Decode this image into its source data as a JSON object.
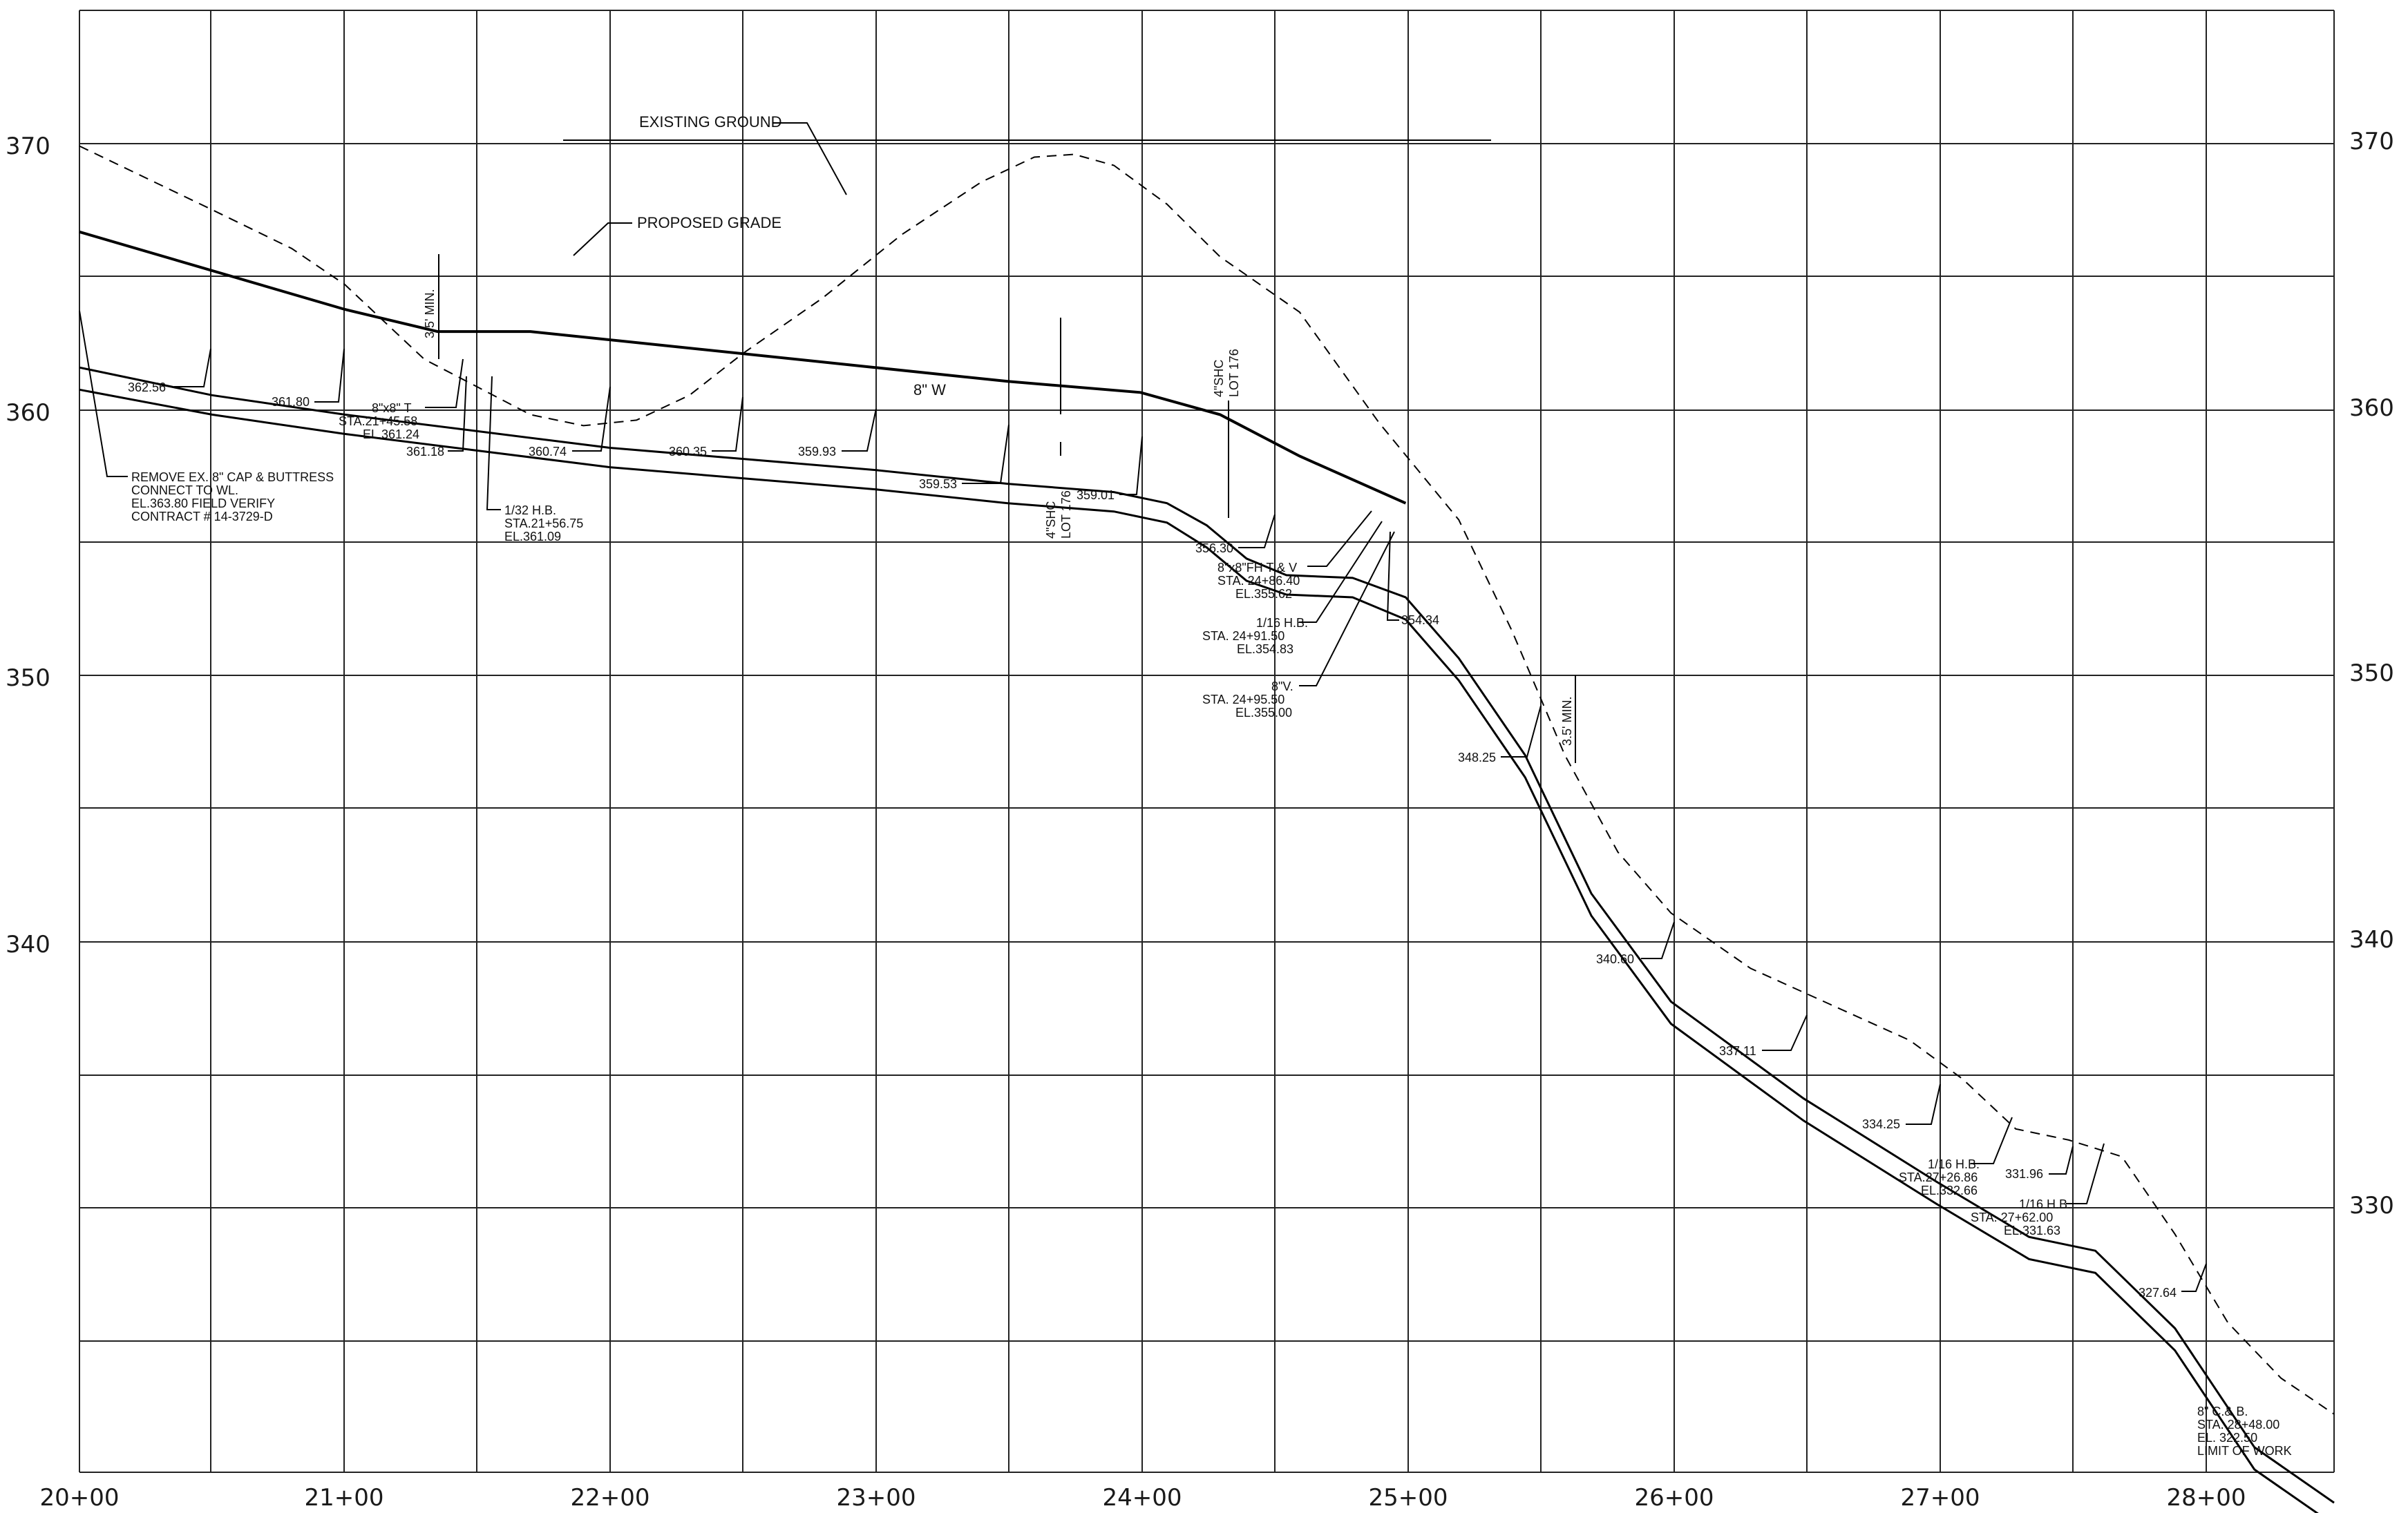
{
  "x_axis": {
    "stations": [
      "20+00",
      "21+00",
      "22+00",
      "23+00",
      "24+00",
      "25+00",
      "26+00",
      "27+00",
      "28+00"
    ],
    "min": 20,
    "max": 28.5
  },
  "y_axis": {
    "left_labels": [
      "370",
      "360",
      "350",
      "340",
      "330"
    ],
    "right_labels": [
      "370",
      "360",
      "350",
      "340",
      "330"
    ],
    "min": 324.6,
    "max": 377.4
  },
  "lines": {
    "existing_ground": [
      [
        20,
        372.5
      ],
      [
        20.5,
        370.2
      ],
      [
        20.8,
        368.8
      ],
      [
        21,
        367.5
      ],
      [
        21.3,
        364.8
      ],
      [
        21.5,
        363.8
      ],
      [
        21.7,
        362.8
      ],
      [
        21.9,
        362.4
      ],
      [
        22.1,
        362.6
      ],
      [
        22.3,
        363.5
      ],
      [
        22.5,
        365
      ],
      [
        22.8,
        367
      ],
      [
        23.1,
        369.3
      ],
      [
        23.4,
        371.2
      ],
      [
        23.6,
        372.1
      ],
      [
        23.75,
        372.2
      ],
      [
        23.9,
        371.8
      ],
      [
        24.1,
        370.4
      ],
      [
        24.3,
        368.5
      ],
      [
        24.6,
        366.5
      ],
      [
        24.9,
        362.5
      ],
      [
        25.2,
        359
      ],
      [
        25.4,
        355
      ],
      [
        25.6,
        350.5
      ],
      [
        25.8,
        347
      ],
      [
        26,
        344.8
      ],
      [
        26.3,
        342.8
      ],
      [
        26.6,
        341.5
      ],
      [
        26.9,
        340.2
      ],
      [
        27.1,
        338.8
      ],
      [
        27.3,
        337
      ],
      [
        27.5,
        336.6
      ],
      [
        27.7,
        336
      ],
      [
        27.9,
        333.2
      ],
      [
        28.1,
        330
      ],
      [
        28.3,
        328
      ],
      [
        28.5,
        326.7
      ]
    ],
    "proposed_grade": [
      [
        20,
        369.4
      ],
      [
        21,
        366.6
      ],
      [
        21.35,
        365.8
      ],
      [
        21.7,
        365.8
      ],
      [
        22.2,
        365.3
      ],
      [
        23,
        364.5
      ],
      [
        23.5,
        364
      ],
      [
        24,
        363.6
      ],
      [
        24.3,
        362.8
      ],
      [
        24.6,
        361.3
      ],
      [
        25,
        359.6
      ]
    ],
    "pipe_top": [
      [
        20,
        364.5
      ],
      [
        20.5,
        363.5
      ],
      [
        21,
        362.8
      ],
      [
        21.5,
        362.2
      ],
      [
        22,
        361.6
      ],
      [
        22.5,
        361.2
      ],
      [
        23,
        360.8
      ],
      [
        23.5,
        360.3
      ],
      [
        23.9,
        360
      ],
      [
        24.1,
        359.6
      ],
      [
        24.25,
        358.8
      ],
      [
        24.4,
        357.6
      ],
      [
        24.55,
        357
      ],
      [
        24.8,
        356.9
      ],
      [
        25,
        356.2
      ],
      [
        25.2,
        354
      ],
      [
        25.45,
        350.5
      ],
      [
        25.7,
        345.5
      ],
      [
        26,
        341.6
      ],
      [
        26.5,
        338.1
      ],
      [
        27,
        335.1
      ],
      [
        27.35,
        333.1
      ],
      [
        27.6,
        332.6
      ],
      [
        27.9,
        329.8
      ],
      [
        28.2,
        325.5
      ],
      [
        28.5,
        323.5
      ]
    ],
    "pipe_bottom": [
      [
        20,
        363.7
      ],
      [
        20.5,
        362.8
      ],
      [
        21,
        362.1
      ],
      [
        21.5,
        361.5
      ],
      [
        22,
        360.9
      ],
      [
        22.5,
        360.5
      ],
      [
        23,
        360.1
      ],
      [
        23.5,
        359.6
      ],
      [
        23.9,
        359.3
      ],
      [
        24.1,
        358.9
      ],
      [
        24.25,
        358
      ],
      [
        24.4,
        356.8
      ],
      [
        24.55,
        356.3
      ],
      [
        24.8,
        356.2
      ],
      [
        25,
        355.4
      ],
      [
        25.2,
        353.2
      ],
      [
        25.45,
        349.7
      ],
      [
        25.7,
        344.7
      ],
      [
        26,
        340.8
      ],
      [
        26.5,
        337.3
      ],
      [
        27,
        334.3
      ],
      [
        27.35,
        332.3
      ],
      [
        27.6,
        331.8
      ],
      [
        27.9,
        329
      ],
      [
        28.2,
        324.7
      ],
      [
        28.5,
        322.7
      ]
    ]
  },
  "callouts": {
    "existing_ground": "EXISTING GROUND",
    "proposed_grade": "PROPOSED GRADE",
    "pipe_size": "8\" W"
  },
  "min_cover": [
    "3.5' MIN.",
    "3.5' MIN."
  ],
  "service_labels": [
    "4\"SHC",
    "LOT 176"
  ],
  "elevation_labels": [
    "362.56",
    "361.80",
    "361.18",
    "360.74",
    "360.35",
    "359.93",
    "359.53",
    "359.01",
    "356.30",
    "354.34",
    "348.25",
    "340.60",
    "337.11",
    "334.25",
    "331.96",
    "327.64"
  ],
  "notes": [
    [
      "REMOVE EX. 8\" CAP & BUTTRESS",
      "CONNECT TO WL.",
      "EL.363.80 FIELD VERIFY",
      "CONTRACT # 14-3729-D"
    ],
    [
      "8\"x8\" T",
      "STA.21+45.58",
      "EL.361.24"
    ],
    [
      "1/32 H.B.",
      "STA.21+56.75",
      "EL.361.09"
    ],
    [
      "8\"x8\"FH T & V",
      "STA. 24+86.40",
      "EL.355.62"
    ],
    [
      "1/16 H.B.",
      "STA. 24+91.50",
      "EL.354.83"
    ],
    [
      "8\"V.",
      "STA. 24+95.50",
      "EL.355.00"
    ],
    [
      "1/16 H.B.",
      "STA.27+26.86",
      "EL.332.66"
    ],
    [
      "1/16 H.B.",
      "STA. 27+62.00",
      "EL.331.63"
    ],
    [
      "8\" C.& B.",
      "STA. 28+48.00",
      "EL. 322.50",
      "LIMIT OF WORK"
    ]
  ]
}
